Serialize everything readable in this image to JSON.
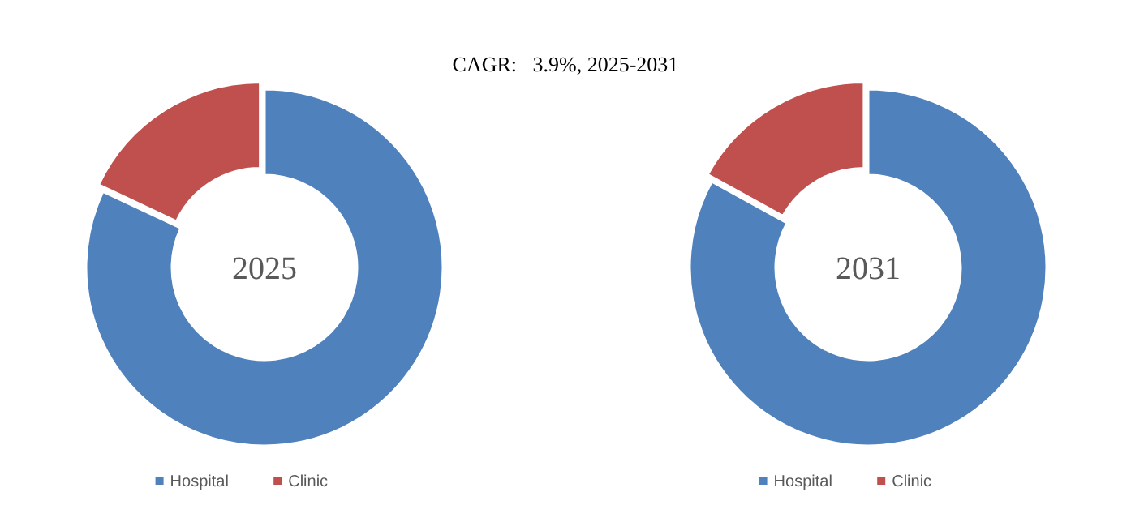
{
  "chart_data": [
    {
      "type": "donut",
      "title": "CAGR:   3.9%, 2025-2031",
      "annotations": [
        "2025"
      ],
      "categories": [
        "Hospital",
        "Clinic"
      ],
      "values": [
        82,
        18
      ],
      "colors": [
        "#4f81bd",
        "#c0504d"
      ],
      "legend": "bottom"
    },
    {
      "type": "donut",
      "annotations": [
        "2031"
      ],
      "categories": [
        "Hospital",
        "Clinic"
      ],
      "values": [
        83,
        17
      ],
      "colors": [
        "#4f81bd",
        "#c0504d"
      ],
      "legend": "bottom"
    }
  ]
}
